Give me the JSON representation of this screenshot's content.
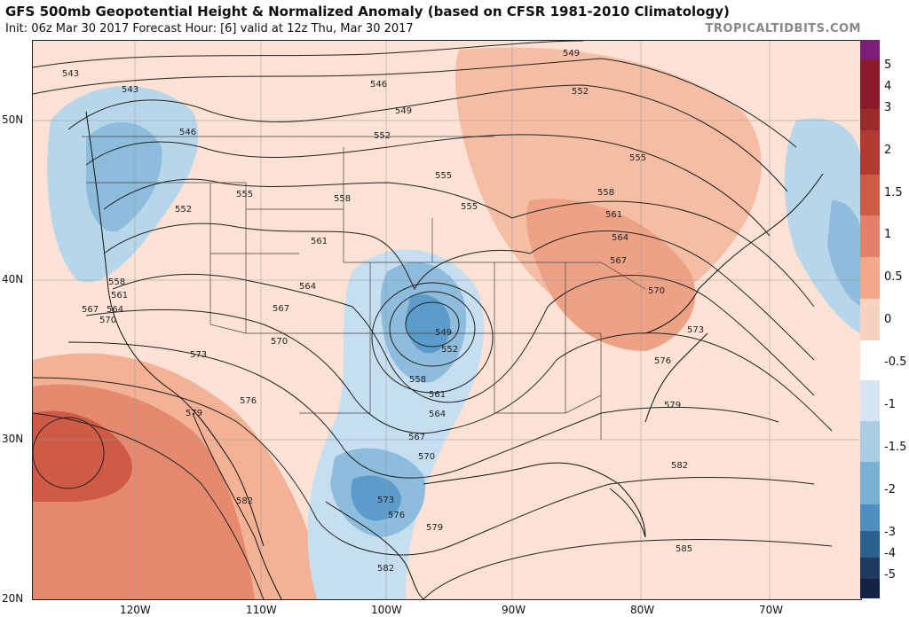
{
  "header": {
    "title": "GFS 500mb Geopotential Height & Normalized Anomaly (based on CFSR 1981-2010 Climatology)",
    "subtitle": "Init: 06z Mar 30 2017   Forecast Hour: [6]   valid at 12z Thu, Mar 30 2017",
    "brand": "TROPICALTIDBITS.COM"
  },
  "axes": {
    "lat_labels": [
      "50N",
      "40N",
      "30N",
      "20N"
    ],
    "lon_labels": [
      "120W",
      "110W",
      "100W",
      "90W",
      "80W",
      "70W"
    ]
  },
  "colorbar": {
    "labels": [
      "5",
      "4",
      "3",
      "2",
      "1.5",
      "1",
      "0.5",
      "0",
      "-0.5",
      "-1",
      "-1.5",
      "-2",
      "-3",
      "-4",
      "-5"
    ],
    "colors": [
      "#7a1e78",
      "#8b1a2a",
      "#9b2a2a",
      "#b33a32",
      "#cf5a46",
      "#e4806a",
      "#f2a889",
      "#f9d2bf",
      "#ffffff",
      "#d5e6f2",
      "#a9cde4",
      "#7ab0d4",
      "#4d8fc0",
      "#2a5f8e",
      "#1c3b5e",
      "#132348"
    ]
  },
  "contour_labels": [
    "543",
    "543",
    "546",
    "546",
    "549",
    "549",
    "552",
    "552",
    "552",
    "555",
    "555",
    "555",
    "555",
    "558",
    "558",
    "558",
    "558",
    "561",
    "561",
    "561",
    "561",
    "564",
    "564",
    "564",
    "564",
    "567",
    "567",
    "567",
    "567",
    "570",
    "570",
    "570",
    "570",
    "573",
    "573",
    "573",
    "576",
    "576",
    "576",
    "579",
    "579",
    "579",
    "582",
    "582",
    "582",
    "585",
    "549",
    "552"
  ]
}
